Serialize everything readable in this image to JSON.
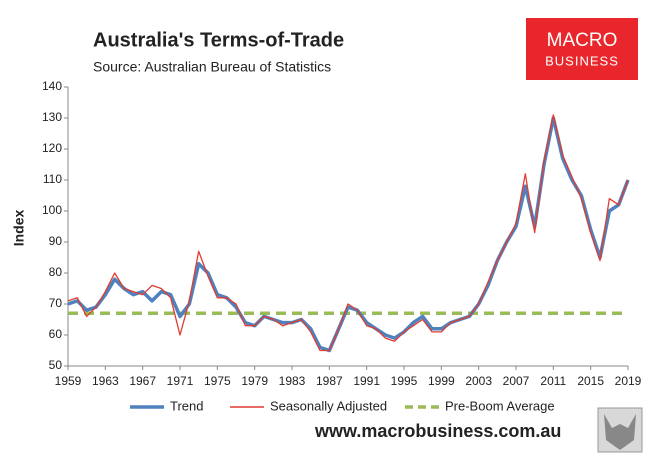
{
  "chart_data": {
    "type": "line",
    "title": "Australia's Terms-of-Trade",
    "subtitle": "Source: Australian Bureau of Statistics",
    "ylabel": "Index",
    "logo": [
      "MACRO",
      "BUSINESS"
    ],
    "footer": "www.macrobusiness.com.au",
    "x": [
      1959,
      1960,
      1961,
      1962,
      1963,
      1964,
      1965,
      1966,
      1967,
      1968,
      1969,
      1970,
      1971,
      1972,
      1973,
      1974,
      1975,
      1976,
      1977,
      1978,
      1979,
      1980,
      1981,
      1982,
      1983,
      1984,
      1985,
      1986,
      1987,
      1988,
      1989,
      1990,
      1991,
      1992,
      1993,
      1994,
      1995,
      1996,
      1997,
      1998,
      1999,
      2000,
      2001,
      2002,
      2003,
      2004,
      2005,
      2006,
      2007,
      2008,
      2009,
      2010,
      2011,
      2012,
      2013,
      2014,
      2015,
      2016,
      2017,
      2018,
      2019
    ],
    "series": [
      {
        "name": "Trend",
        "color": "#4f81bd",
        "values": [
          70,
          71,
          68,
          69,
          73,
          78,
          75,
          73,
          74,
          71,
          74,
          73,
          66,
          70,
          83,
          80,
          73,
          72,
          69,
          64,
          63,
          66,
          65,
          64,
          64,
          65,
          62,
          56,
          55,
          62,
          69,
          68,
          64,
          62,
          60,
          59,
          61,
          64,
          66,
          62,
          62,
          64,
          65,
          66,
          70,
          76,
          84,
          90,
          95,
          108,
          95,
          115,
          130,
          117,
          110,
          105,
          94,
          85,
          100,
          102,
          110
        ]
      },
      {
        "name": "Seasonally Adjusted",
        "color": "#e03c31",
        "values": [
          71,
          72,
          66,
          69,
          74,
          80,
          75,
          74,
          73,
          76,
          75,
          72,
          60,
          71,
          87,
          79,
          72,
          72,
          70,
          63,
          63,
          66,
          65,
          63,
          64,
          65,
          61,
          55,
          55,
          62,
          70,
          68,
          63,
          62,
          59,
          58,
          61,
          63,
          65,
          61,
          61,
          64,
          65,
          66,
          70,
          77,
          84,
          90,
          96,
          112,
          93,
          116,
          131,
          118,
          111,
          104,
          93,
          84,
          104,
          102,
          110
        ]
      }
    ],
    "reference_line": {
      "name": "Pre-Boom Average",
      "color": "#9bbb59",
      "value": 67
    },
    "xlim": [
      1959,
      2019
    ],
    "xticks": [
      1959,
      1963,
      1967,
      1971,
      1975,
      1979,
      1983,
      1987,
      1991,
      1995,
      1999,
      2003,
      2007,
      2011,
      2015,
      2019
    ],
    "ylim": [
      50,
      140
    ],
    "yticks": [
      50,
      60,
      70,
      80,
      90,
      100,
      110,
      120,
      130,
      140
    ]
  }
}
